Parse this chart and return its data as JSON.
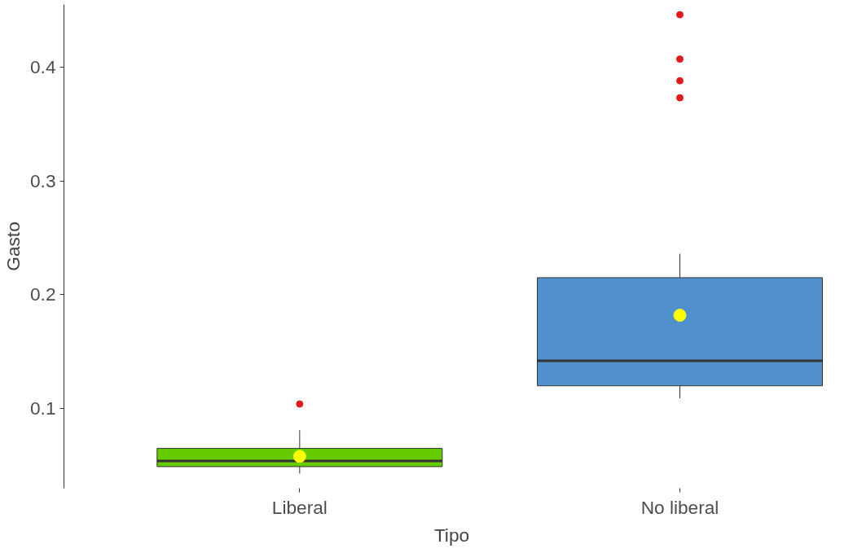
{
  "chart_data": {
    "type": "box",
    "xlabel": "Tipo",
    "ylabel": "Gasto",
    "categories": [
      "Liberal",
      "No liberal"
    ],
    "colors": [
      "#66cc00",
      "#4f90cd"
    ],
    "boxes": [
      {
        "low": 0.043,
        "q1": 0.049,
        "median": 0.054,
        "q3": 0.065,
        "high": 0.081,
        "mean": 0.058,
        "outliers": [
          0.104
        ]
      },
      {
        "low": 0.109,
        "q1": 0.12,
        "median": 0.142,
        "q3": 0.215,
        "high": 0.236,
        "mean": 0.182,
        "outliers": [
          0.373,
          0.388,
          0.407,
          0.446
        ]
      }
    ],
    "ylim": [
      0.03,
      0.455
    ],
    "yticks": [
      0.1,
      0.2,
      0.3,
      0.4
    ],
    "grid": false
  }
}
